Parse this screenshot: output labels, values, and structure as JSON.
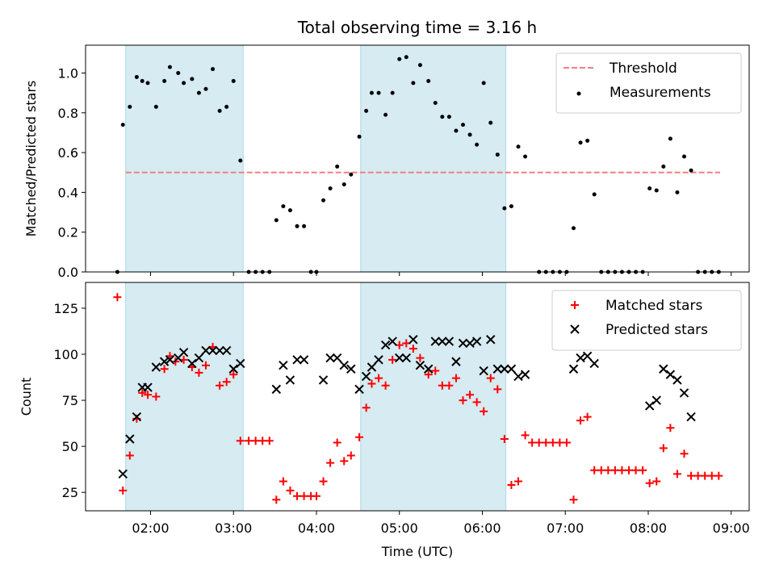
{
  "title": "Total observing time = 3.16 h",
  "chart_data": [
    {
      "type": "scatter",
      "panel": "top",
      "ylabel": "Matched/Predicted stars",
      "xlabel": "",
      "xlim": [
        "01:13",
        "09:13"
      ],
      "ylim": [
        0,
        1.14
      ],
      "yticks": [
        0.0,
        0.2,
        0.4,
        0.6,
        0.8,
        1.0
      ],
      "ytick_labels": [
        "0.0",
        "0.2",
        "0.4",
        "0.6",
        "0.8",
        "1.0"
      ],
      "xticks": [
        "02:00",
        "03:00",
        "04:00",
        "05:00",
        "06:00",
        "07:00",
        "08:00",
        "09:00"
      ],
      "show_xtick_labels": false,
      "grid": false,
      "legend": {
        "location": "upper right"
      },
      "shaded_intervals": [
        [
          "01:42",
          "03:07"
        ],
        [
          "04:32",
          "06:17"
        ]
      ],
      "shade_color": "#add8e6",
      "threshold": {
        "name": "Threshold",
        "y": 0.5,
        "x_range": [
          "01:42",
          "08:52"
        ],
        "color": "#f08080"
      },
      "series": [
        {
          "name": "Measurements",
          "color": "#000000",
          "marker": "dot",
          "points": [
            [
              "01:36",
              0.0
            ],
            [
              "01:40",
              0.74
            ],
            [
              "01:45",
              0.83
            ],
            [
              "01:50",
              0.98
            ],
            [
              "01:54",
              0.96
            ],
            [
              "01:58",
              0.95
            ],
            [
              "02:04",
              0.83
            ],
            [
              "02:10",
              0.96
            ],
            [
              "02:14",
              1.03
            ],
            [
              "02:20",
              1.0
            ],
            [
              "02:24",
              0.95
            ],
            [
              "02:30",
              0.97
            ],
            [
              "02:35",
              0.9
            ],
            [
              "02:40",
              0.92
            ],
            [
              "02:45",
              1.02
            ],
            [
              "02:50",
              0.81
            ],
            [
              "02:55",
              0.83
            ],
            [
              "03:00",
              0.96
            ],
            [
              "03:05",
              0.56
            ],
            [
              "03:11",
              0.0
            ],
            [
              "03:16",
              0.0
            ],
            [
              "03:21",
              0.0
            ],
            [
              "03:26",
              0.0
            ],
            [
              "03:31",
              0.26
            ],
            [
              "03:36",
              0.33
            ],
            [
              "03:41",
              0.31
            ],
            [
              "03:46",
              0.23
            ],
            [
              "03:51",
              0.23
            ],
            [
              "03:56",
              0.0
            ],
            [
              "04:00",
              0.0
            ],
            [
              "04:05",
              0.36
            ],
            [
              "04:10",
              0.42
            ],
            [
              "04:15",
              0.53
            ],
            [
              "04:20",
              0.44
            ],
            [
              "04:25",
              0.49
            ],
            [
              "04:31",
              0.68
            ],
            [
              "04:36",
              0.81
            ],
            [
              "04:40",
              0.9
            ],
            [
              "04:45",
              0.9
            ],
            [
              "04:50",
              0.79
            ],
            [
              "04:55",
              0.9
            ],
            [
              "05:00",
              1.07
            ],
            [
              "05:05",
              1.08
            ],
            [
              "05:10",
              0.95
            ],
            [
              "05:15",
              1.04
            ],
            [
              "05:21",
              0.96
            ],
            [
              "05:26",
              0.85
            ],
            [
              "05:31",
              0.78
            ],
            [
              "05:36",
              0.78
            ],
            [
              "05:41",
              0.71
            ],
            [
              "05:46",
              0.74
            ],
            [
              "05:51",
              0.69
            ],
            [
              "05:56",
              0.64
            ],
            [
              "06:01",
              0.95
            ],
            [
              "06:06",
              0.75
            ],
            [
              "06:11",
              0.59
            ],
            [
              "06:16",
              0.32
            ],
            [
              "06:21",
              0.33
            ],
            [
              "06:26",
              0.63
            ],
            [
              "06:31",
              0.58
            ],
            [
              "06:41",
              0.0
            ],
            [
              "06:46",
              0.0
            ],
            [
              "06:51",
              0.0
            ],
            [
              "06:56",
              0.0
            ],
            [
              "07:01",
              0.0
            ],
            [
              "07:06",
              0.22
            ],
            [
              "07:11",
              0.65
            ],
            [
              "07:16",
              0.66
            ],
            [
              "07:21",
              0.39
            ],
            [
              "07:26",
              0.0
            ],
            [
              "07:31",
              0.0
            ],
            [
              "07:36",
              0.0
            ],
            [
              "07:41",
              0.0
            ],
            [
              "07:46",
              0.0
            ],
            [
              "07:51",
              0.0
            ],
            [
              "07:56",
              0.0
            ],
            [
              "08:01",
              0.42
            ],
            [
              "08:06",
              0.41
            ],
            [
              "08:11",
              0.53
            ],
            [
              "08:16",
              0.67
            ],
            [
              "08:21",
              0.4
            ],
            [
              "08:26",
              0.58
            ],
            [
              "08:31",
              0.51
            ],
            [
              "08:36",
              0.0
            ],
            [
              "08:41",
              0.0
            ],
            [
              "08:46",
              0.0
            ],
            [
              "08:51",
              0.0
            ]
          ]
        }
      ]
    },
    {
      "type": "scatter",
      "panel": "bottom",
      "ylabel": "Count",
      "xlabel": "Time (UTC)",
      "xlim": [
        "01:13",
        "09:13"
      ],
      "ylim": [
        15,
        139
      ],
      "yticks": [
        25,
        50,
        75,
        100,
        125
      ],
      "ytick_labels": [
        "25",
        "50",
        "75",
        "100",
        "125"
      ],
      "xticks": [
        "02:00",
        "03:00",
        "04:00",
        "05:00",
        "06:00",
        "07:00",
        "08:00",
        "09:00"
      ],
      "show_xtick_labels": true,
      "grid": false,
      "legend": {
        "location": "upper right"
      },
      "shaded_intervals": [
        [
          "01:42",
          "03:07"
        ],
        [
          "04:32",
          "06:17"
        ]
      ],
      "shade_color": "#add8e6",
      "series": [
        {
          "name": "Matched stars",
          "color": "#ff0000",
          "marker": "plus",
          "points": [
            [
              "01:36",
              131
            ],
            [
              "01:40",
              26
            ],
            [
              "01:45",
              45
            ],
            [
              "01:50",
              65
            ],
            [
              "01:54",
              79
            ],
            [
              "01:58",
              78
            ],
            [
              "02:04",
              77
            ],
            [
              "02:10",
              92
            ],
            [
              "02:14",
              99
            ],
            [
              "02:18",
              96
            ],
            [
              "02:24",
              97
            ],
            [
              "02:30",
              93
            ],
            [
              "02:35",
              90
            ],
            [
              "02:40",
              94
            ],
            [
              "02:45",
              104
            ],
            [
              "02:50",
              83
            ],
            [
              "02:55",
              85
            ],
            [
              "03:00",
              89
            ],
            [
              "03:05",
              53
            ],
            [
              "03:11",
              53
            ],
            [
              "03:16",
              53
            ],
            [
              "03:21",
              53
            ],
            [
              "03:26",
              53
            ],
            [
              "03:31",
              21
            ],
            [
              "03:36",
              31
            ],
            [
              "03:41",
              26
            ],
            [
              "03:46",
              23
            ],
            [
              "03:51",
              23
            ],
            [
              "03:56",
              23
            ],
            [
              "04:00",
              23
            ],
            [
              "04:05",
              31
            ],
            [
              "04:10",
              41
            ],
            [
              "04:15",
              52
            ],
            [
              "04:20",
              42
            ],
            [
              "04:25",
              45
            ],
            [
              "04:31",
              55
            ],
            [
              "04:36",
              71
            ],
            [
              "04:40",
              84
            ],
            [
              "04:45",
              87
            ],
            [
              "04:50",
              83
            ],
            [
              "04:55",
              97
            ],
            [
              "05:00",
              105
            ],
            [
              "05:05",
              106
            ],
            [
              "05:10",
              103
            ],
            [
              "05:15",
              98
            ],
            [
              "05:21",
              89
            ],
            [
              "05:26",
              91
            ],
            [
              "05:31",
              83
            ],
            [
              "05:36",
              83
            ],
            [
              "05:41",
              87
            ],
            [
              "05:46",
              75
            ],
            [
              "05:51",
              78
            ],
            [
              "05:56",
              74
            ],
            [
              "06:01",
              69
            ],
            [
              "06:06",
              87
            ],
            [
              "06:11",
              81
            ],
            [
              "06:16",
              54
            ],
            [
              "06:21",
              29
            ],
            [
              "06:26",
              31
            ],
            [
              "06:31",
              56
            ],
            [
              "06:36",
              52
            ],
            [
              "06:41",
              52
            ],
            [
              "06:46",
              52
            ],
            [
              "06:51",
              52
            ],
            [
              "06:56",
              52
            ],
            [
              "07:01",
              52
            ],
            [
              "07:06",
              21
            ],
            [
              "07:11",
              64
            ],
            [
              "07:16",
              66
            ],
            [
              "07:21",
              37
            ],
            [
              "07:26",
              37
            ],
            [
              "07:31",
              37
            ],
            [
              "07:36",
              37
            ],
            [
              "07:41",
              37
            ],
            [
              "07:46",
              37
            ],
            [
              "07:51",
              37
            ],
            [
              "07:56",
              37
            ],
            [
              "08:01",
              30
            ],
            [
              "08:06",
              31
            ],
            [
              "08:11",
              49
            ],
            [
              "08:16",
              60
            ],
            [
              "08:21",
              35
            ],
            [
              "08:26",
              46
            ],
            [
              "08:31",
              34
            ],
            [
              "08:36",
              34
            ],
            [
              "08:41",
              34
            ],
            [
              "08:46",
              34
            ],
            [
              "08:51",
              34
            ]
          ]
        },
        {
          "name": "Predicted stars",
          "color": "#000000",
          "marker": "x",
          "points": [
            [
              "01:40",
              35
            ],
            [
              "01:45",
              54
            ],
            [
              "01:50",
              66
            ],
            [
              "01:54",
              82
            ],
            [
              "01:58",
              82
            ],
            [
              "02:04",
              93
            ],
            [
              "02:10",
              96
            ],
            [
              "02:14",
              97
            ],
            [
              "02:20",
              98
            ],
            [
              "02:24",
              101
            ],
            [
              "02:30",
              95
            ],
            [
              "02:35",
              98
            ],
            [
              "02:40",
              102
            ],
            [
              "02:45",
              102
            ],
            [
              "02:50",
              102
            ],
            [
              "02:55",
              102
            ],
            [
              "03:00",
              92
            ],
            [
              "03:05",
              95
            ],
            [
              "03:31",
              81
            ],
            [
              "03:36",
              94
            ],
            [
              "03:41",
              86
            ],
            [
              "03:46",
              97
            ],
            [
              "03:51",
              97
            ],
            [
              "04:05",
              86
            ],
            [
              "04:10",
              98
            ],
            [
              "04:15",
              98
            ],
            [
              "04:20",
              94
            ],
            [
              "04:25",
              92
            ],
            [
              "04:31",
              81
            ],
            [
              "04:36",
              88
            ],
            [
              "04:40",
              93
            ],
            [
              "04:45",
              97
            ],
            [
              "04:50",
              105
            ],
            [
              "04:55",
              107
            ],
            [
              "05:00",
              98
            ],
            [
              "05:05",
              98
            ],
            [
              "05:10",
              108
            ],
            [
              "05:15",
              94
            ],
            [
              "05:21",
              92
            ],
            [
              "05:26",
              107
            ],
            [
              "05:31",
              107
            ],
            [
              "05:36",
              107
            ],
            [
              "05:41",
              96
            ],
            [
              "05:46",
              106
            ],
            [
              "05:51",
              106
            ],
            [
              "05:56",
              107
            ],
            [
              "06:01",
              91
            ],
            [
              "06:06",
              108
            ],
            [
              "06:11",
              92
            ],
            [
              "06:16",
              92
            ],
            [
              "06:21",
              92
            ],
            [
              "06:26",
              88
            ],
            [
              "06:31",
              89
            ],
            [
              "07:06",
              92
            ],
            [
              "07:11",
              98
            ],
            [
              "07:16",
              99
            ],
            [
              "07:21",
              95
            ],
            [
              "08:01",
              72
            ],
            [
              "08:06",
              75
            ],
            [
              "08:11",
              92
            ],
            [
              "08:16",
              89
            ],
            [
              "08:21",
              86
            ],
            [
              "08:26",
              79
            ],
            [
              "08:31",
              66
            ]
          ]
        }
      ]
    }
  ]
}
